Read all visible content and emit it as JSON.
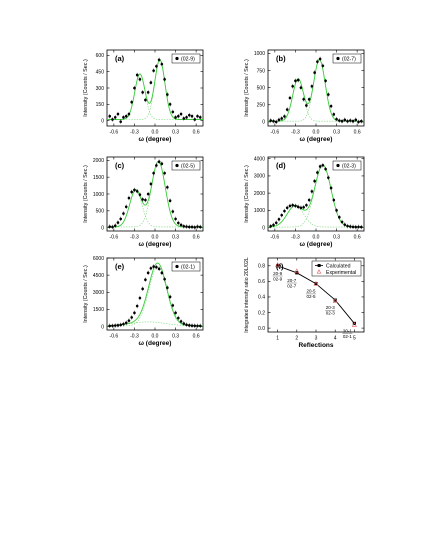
{
  "chart_data": [
    {
      "id": "a",
      "type": "scatter",
      "panel_label": "(a)",
      "legend": "(02-9)",
      "xlabel": "ω (degree)",
      "ylabel": "Intensity (Counts / Sec.)",
      "xlim": [
        -0.7,
        0.7
      ],
      "ylim": [
        -50,
        650
      ],
      "xticks": [
        -0.6,
        -0.3,
        0.0,
        0.3,
        0.6
      ],
      "yticks": [
        0,
        150,
        300,
        450,
        600
      ],
      "xtick_labels": [
        "-0.6",
        "-0.3",
        "0.0",
        "0.3",
        "0.6"
      ],
      "ytick_labels": [
        "0",
        "150",
        "300",
        "450",
        "600"
      ],
      "peaks": [
        {
          "center": -0.22,
          "amp": 420,
          "sigma": 0.075
        },
        {
          "center": 0.07,
          "amp": 550,
          "sigma": 0.075
        }
      ],
      "baseline": 10,
      "x": [
        -0.66,
        -0.62,
        -0.58,
        -0.54,
        -0.5,
        -0.46,
        -0.42,
        -0.38,
        -0.34,
        -0.3,
        -0.26,
        -0.22,
        -0.18,
        -0.14,
        -0.1,
        -0.06,
        -0.02,
        0.02,
        0.06,
        0.1,
        0.14,
        0.18,
        0.22,
        0.26,
        0.3,
        0.34,
        0.38,
        0.42,
        0.46,
        0.5,
        0.54,
        0.58,
        0.62,
        0.66
      ],
      "y": [
        40,
        10,
        30,
        60,
        -10,
        30,
        40,
        60,
        170,
        300,
        420,
        380,
        260,
        190,
        260,
        350,
        460,
        500,
        560,
        520,
        380,
        240,
        150,
        80,
        30,
        40,
        60,
        20,
        30,
        50,
        40,
        10,
        40,
        30
      ]
    },
    {
      "id": "b",
      "type": "scatter",
      "panel_label": "(b)",
      "legend": "(02-7)",
      "xlabel": "ω (degree)",
      "ylabel": "Intensity (Counts / Sec.)",
      "xlim": [
        -0.7,
        0.7
      ],
      "ylim": [
        -60,
        1050
      ],
      "xticks": [
        -0.6,
        -0.3,
        0.0,
        0.3,
        0.6
      ],
      "yticks": [
        0,
        250,
        500,
        750,
        1000
      ],
      "xtick_labels": [
        "-0.6",
        "-0.3",
        "0.0",
        "0.3",
        "0.6"
      ],
      "ytick_labels": [
        "0",
        "250",
        "500",
        "750",
        "1000"
      ],
      "peaks": [
        {
          "center": -0.26,
          "amp": 620,
          "sigma": 0.08
        },
        {
          "center": 0.05,
          "amp": 900,
          "sigma": 0.085
        }
      ],
      "baseline": 10,
      "x": [
        -0.66,
        -0.62,
        -0.58,
        -0.54,
        -0.5,
        -0.46,
        -0.42,
        -0.38,
        -0.34,
        -0.3,
        -0.26,
        -0.22,
        -0.18,
        -0.14,
        -0.1,
        -0.06,
        -0.02,
        0.02,
        0.06,
        0.1,
        0.14,
        0.18,
        0.22,
        0.26,
        0.3,
        0.34,
        0.38,
        0.42,
        0.46,
        0.5,
        0.54,
        0.58,
        0.62,
        0.66
      ],
      "y": [
        20,
        10,
        0,
        30,
        50,
        80,
        180,
        350,
        520,
        600,
        610,
        500,
        330,
        240,
        330,
        520,
        720,
        880,
        920,
        820,
        600,
        400,
        230,
        110,
        40,
        20,
        10,
        30,
        10,
        20,
        10,
        30,
        0,
        10
      ]
    },
    {
      "id": "c",
      "type": "scatter",
      "panel_label": "(c)",
      "legend": "(02-5)",
      "xlabel": "ω (degree)",
      "ylabel": "Intensity (Counts / Sec.)",
      "xlim": [
        -0.7,
        0.7
      ],
      "ylim": [
        -100,
        2100
      ],
      "xticks": [
        -0.6,
        -0.3,
        0.0,
        0.3,
        0.6
      ],
      "yticks": [
        0,
        500,
        1000,
        1500,
        2000
      ],
      "xtick_labels": [
        "-0.6",
        "-0.3",
        "0.0",
        "0.3",
        "0.6"
      ],
      "ytick_labels": [
        "0",
        "500",
        "1000",
        "1500",
        "2000"
      ],
      "peaks": [
        {
          "center": -0.28,
          "amp": 1100,
          "sigma": 0.09
        },
        {
          "center": 0.05,
          "amp": 1950,
          "sigma": 0.1
        }
      ],
      "baseline": 20,
      "x": [
        -0.66,
        -0.62,
        -0.58,
        -0.54,
        -0.5,
        -0.46,
        -0.42,
        -0.38,
        -0.34,
        -0.3,
        -0.26,
        -0.22,
        -0.18,
        -0.14,
        -0.1,
        -0.06,
        -0.02,
        0.02,
        0.06,
        0.1,
        0.14,
        0.18,
        0.22,
        0.26,
        0.3,
        0.34,
        0.38,
        0.42,
        0.46,
        0.5,
        0.54,
        0.58,
        0.62,
        0.66
      ],
      "y": [
        30,
        20,
        60,
        150,
        260,
        420,
        620,
        880,
        1060,
        1120,
        1080,
        980,
        840,
        820,
        1000,
        1300,
        1620,
        1850,
        1960,
        1900,
        1620,
        1200,
        800,
        480,
        260,
        140,
        80,
        40,
        30,
        20,
        20,
        10,
        30,
        20
      ]
    },
    {
      "id": "d",
      "type": "scatter",
      "panel_label": "(d)",
      "legend": "(02-3)",
      "xlabel": "ω (degree)",
      "ylabel": "Intensity (Counts / Sec.)",
      "xlim": [
        -0.7,
        0.7
      ],
      "ylim": [
        -200,
        4100
      ],
      "xticks": [
        -0.6,
        -0.3,
        0.0,
        0.3,
        0.6
      ],
      "yticks": [
        0,
        1000,
        2000,
        3000,
        4000
      ],
      "xtick_labels": [
        "-0.6",
        "-0.3",
        "0.0",
        "0.3",
        "0.6"
      ],
      "ytick_labels": [
        "0",
        "1000",
        "2000",
        "3000",
        "4000"
      ],
      "peaks": [
        {
          "center": -0.3,
          "amp": 1250,
          "sigma": 0.12
        },
        {
          "center": 0.1,
          "amp": 3600,
          "sigma": 0.12
        }
      ],
      "baseline": 30,
      "x": [
        -0.66,
        -0.62,
        -0.58,
        -0.54,
        -0.5,
        -0.46,
        -0.42,
        -0.38,
        -0.34,
        -0.3,
        -0.26,
        -0.22,
        -0.18,
        -0.14,
        -0.1,
        -0.06,
        -0.02,
        0.02,
        0.06,
        0.1,
        0.14,
        0.18,
        0.22,
        0.26,
        0.3,
        0.34,
        0.38,
        0.42,
        0.46,
        0.5,
        0.54,
        0.58,
        0.62,
        0.66
      ],
      "y": [
        80,
        150,
        280,
        480,
        720,
        960,
        1150,
        1260,
        1300,
        1260,
        1200,
        1150,
        1180,
        1300,
        1600,
        2100,
        2700,
        3200,
        3550,
        3620,
        3400,
        2900,
        2300,
        1600,
        1000,
        600,
        330,
        170,
        90,
        60,
        40,
        30,
        40,
        30
      ]
    },
    {
      "id": "e",
      "type": "scatter",
      "panel_label": "(e)",
      "legend": "(02-1)",
      "xlabel": "ω (degree)",
      "ylabel": "Intensity (Counts / Sec.)",
      "xlim": [
        -0.7,
        0.7
      ],
      "ylim": [
        -300,
        6000
      ],
      "xticks": [
        -0.6,
        -0.3,
        0.0,
        0.3,
        0.6
      ],
      "yticks": [
        0,
        1500,
        3000,
        4500,
        6000
      ],
      "xtick_labels": [
        "-0.6",
        "-0.3",
        "0.0",
        "0.3",
        "0.6"
      ],
      "ytick_labels": [
        "0",
        "1500",
        "3000",
        "4500",
        "6000"
      ],
      "peaks": [
        {
          "center": 0.04,
          "amp": 5200,
          "sigma": 0.13
        },
        {
          "center": -0.1,
          "amp": 350,
          "sigma": 0.25
        }
      ],
      "baseline": 60,
      "x": [
        -0.66,
        -0.62,
        -0.58,
        -0.54,
        -0.5,
        -0.46,
        -0.42,
        -0.38,
        -0.34,
        -0.3,
        -0.26,
        -0.22,
        -0.18,
        -0.14,
        -0.1,
        -0.06,
        -0.02,
        0.02,
        0.06,
        0.1,
        0.14,
        0.18,
        0.22,
        0.26,
        0.3,
        0.34,
        0.38,
        0.42,
        0.46,
        0.5,
        0.54,
        0.58,
        0.62,
        0.66
      ],
      "y": [
        60,
        70,
        90,
        110,
        150,
        220,
        330,
        520,
        800,
        1200,
        1800,
        2500,
        3300,
        4100,
        4700,
        5100,
        5250,
        5200,
        5050,
        4700,
        4150,
        3400,
        2600,
        1850,
        1200,
        750,
        450,
        260,
        160,
        110,
        80,
        70,
        60,
        60
      ]
    },
    {
      "id": "f",
      "type": "line",
      "panel_label": "(f)",
      "xlabel": "Reflections",
      "ylabel": "Integrated intensity ratio 20L/02L",
      "xlim": [
        0.5,
        5.5
      ],
      "ylim": [
        -0.05,
        0.9
      ],
      "xticks": [
        1,
        2,
        3,
        4,
        5
      ],
      "yticks": [
        0.0,
        0.2,
        0.4,
        0.6,
        0.8
      ],
      "xtick_labels": [
        "1",
        "2",
        "3",
        "4",
        "5"
      ],
      "ytick_labels": [
        "0.0",
        "0.2",
        "0.4",
        "0.6",
        "0.8"
      ],
      "x": [
        1,
        2,
        3,
        4,
        5
      ],
      "series": [
        {
          "name": "Calculated",
          "values": [
            0.8,
            0.71,
            0.57,
            0.36,
            0.06
          ],
          "marker": "square",
          "color": "#000000"
        },
        {
          "name": "Experimental",
          "values": [
            0.81,
            0.73,
            0.57,
            0.35,
            0.04
          ],
          "marker": "triangle",
          "color": "#e06060"
        }
      ],
      "annotations": [
        {
          "x": 1,
          "lines": [
            "20-9",
            "02-9"
          ]
        },
        {
          "x": 2,
          "lines": [
            "20-7",
            "02-7"
          ]
        },
        {
          "x": 3,
          "lines": [
            "20-5",
            "02-5"
          ]
        },
        {
          "x": 4,
          "lines": [
            "20-3",
            "02-3"
          ]
        },
        {
          "x": 5,
          "lines": [
            "20-1",
            "02-1"
          ]
        }
      ]
    }
  ],
  "colors": {
    "fit_line": "#39cc39",
    "component_line": "#7ad67a",
    "data_point": "#000000",
    "experimental": "#e06060"
  }
}
